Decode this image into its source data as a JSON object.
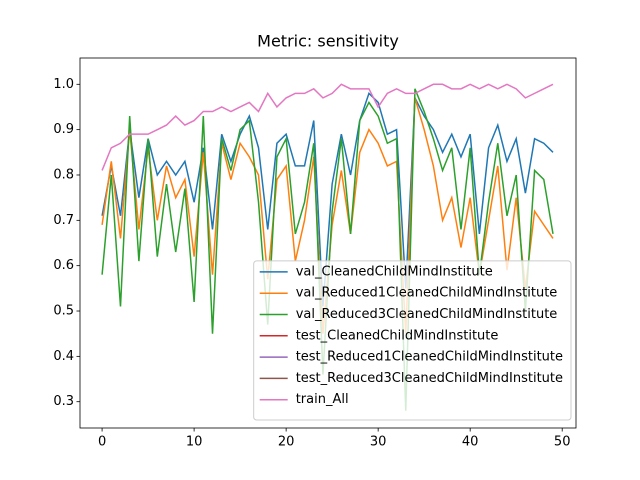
{
  "chart_data": {
    "type": "line",
    "title": "Metric: sensitivity",
    "x": [
      0,
      1,
      2,
      3,
      4,
      5,
      6,
      7,
      8,
      9,
      10,
      11,
      12,
      13,
      14,
      15,
      16,
      17,
      18,
      19,
      20,
      21,
      22,
      23,
      24,
      25,
      26,
      27,
      28,
      29,
      30,
      31,
      32,
      33,
      34,
      35,
      36,
      37,
      38,
      39,
      40,
      41,
      42,
      43,
      44,
      45,
      46,
      47,
      48,
      49
    ],
    "xlim": [
      -2.4,
      51.5
    ],
    "xticks": [
      0,
      10,
      20,
      30,
      40,
      50
    ],
    "ylim": [
      0.242,
      1.058
    ],
    "yticks": [
      0.3,
      0.4,
      0.5,
      0.6,
      0.7,
      0.8,
      0.9,
      {
        "value": 1,
        "label": "1.0"
      }
    ],
    "legend": "lower right",
    "series": [
      {
        "name": "val_CleanedChildMindInstitute",
        "color": "#1f77b4",
        "values": [
          0.71,
          0.82,
          0.71,
          0.9,
          0.75,
          0.88,
          0.8,
          0.83,
          0.8,
          0.83,
          0.74,
          0.86,
          0.68,
          0.89,
          0.83,
          0.89,
          0.93,
          0.86,
          0.68,
          0.87,
          0.89,
          0.82,
          0.82,
          0.92,
          0.51,
          0.78,
          0.89,
          0.8,
          0.92,
          0.98,
          0.96,
          0.89,
          0.9,
          0.55,
          0.97,
          0.93,
          0.9,
          0.85,
          0.89,
          0.84,
          0.89,
          0.67,
          0.86,
          0.91,
          0.83,
          0.88,
          0.76,
          0.88,
          0.87,
          0.85
        ]
      },
      {
        "name": "val_Reduced1CleanedChildMindInstitute",
        "color": "#ff7f0e",
        "values": [
          0.69,
          0.83,
          0.66,
          0.9,
          0.68,
          0.86,
          0.7,
          0.82,
          0.75,
          0.79,
          0.62,
          0.85,
          0.58,
          0.87,
          0.79,
          0.87,
          0.84,
          0.8,
          0.57,
          0.79,
          0.82,
          0.61,
          0.7,
          0.84,
          0.45,
          0.69,
          0.81,
          0.67,
          0.85,
          0.9,
          0.87,
          0.82,
          0.83,
          0.45,
          0.97,
          0.9,
          0.82,
          0.7,
          0.75,
          0.64,
          0.75,
          0.58,
          0.7,
          0.82,
          0.59,
          0.75,
          0.55,
          0.72,
          0.69,
          0.66
        ]
      },
      {
        "name": "val_Reduced3CleanedChildMindInstitute",
        "color": "#2ca02c",
        "values": [
          0.58,
          0.8,
          0.51,
          0.93,
          0.61,
          0.88,
          0.62,
          0.78,
          0.63,
          0.77,
          0.52,
          0.93,
          0.45,
          0.88,
          0.81,
          0.9,
          0.92,
          0.74,
          0.47,
          0.84,
          0.88,
          0.67,
          0.74,
          0.87,
          0.36,
          0.72,
          0.88,
          0.67,
          0.92,
          0.96,
          0.93,
          0.87,
          0.88,
          0.28,
          0.99,
          0.94,
          0.88,
          0.81,
          0.86,
          0.68,
          0.86,
          0.58,
          0.74,
          0.87,
          0.71,
          0.8,
          0.5,
          0.81,
          0.79,
          0.67
        ]
      },
      {
        "name": "test_CleanedChildMindInstitute",
        "color": "#d62728",
        "values": [
          null,
          null,
          null,
          null,
          null,
          null,
          null,
          null,
          null,
          null,
          null,
          null,
          null,
          null,
          null,
          null,
          null,
          null,
          null,
          null,
          null,
          null,
          null,
          null,
          null,
          null,
          null,
          null,
          null,
          null,
          null,
          null,
          null,
          null,
          null,
          null,
          null,
          null,
          null,
          null,
          null,
          null,
          null,
          null,
          null,
          null,
          null,
          null,
          null,
          null
        ]
      },
      {
        "name": "test_Reduced1CleanedChildMindInstitute",
        "color": "#9467bd",
        "values": [
          null,
          null,
          null,
          null,
          null,
          null,
          null,
          null,
          null,
          null,
          null,
          null,
          null,
          null,
          null,
          null,
          null,
          null,
          null,
          null,
          null,
          null,
          null,
          null,
          null,
          null,
          null,
          null,
          null,
          null,
          null,
          null,
          null,
          null,
          null,
          null,
          null,
          null,
          null,
          null,
          null,
          null,
          null,
          null,
          null,
          null,
          null,
          null,
          null,
          null
        ]
      },
      {
        "name": "test_Reduced3CleanedChildMindInstitute",
        "color": "#8c564b",
        "values": [
          null,
          null,
          null,
          null,
          null,
          null,
          null,
          null,
          null,
          null,
          null,
          null,
          null,
          null,
          null,
          null,
          null,
          null,
          null,
          null,
          null,
          null,
          null,
          null,
          null,
          null,
          null,
          null,
          null,
          null,
          null,
          null,
          null,
          null,
          null,
          null,
          null,
          null,
          null,
          null,
          null,
          null,
          null,
          null,
          null,
          null,
          null,
          null,
          null,
          null
        ]
      },
      {
        "name": "train_All",
        "color": "#e377c2",
        "values": [
          0.81,
          0.86,
          0.87,
          0.89,
          0.89,
          0.89,
          0.9,
          0.91,
          0.93,
          0.91,
          0.92,
          0.94,
          0.94,
          0.95,
          0.94,
          0.95,
          0.96,
          0.94,
          0.98,
          0.95,
          0.97,
          0.98,
          0.98,
          0.99,
          0.97,
          0.98,
          1.0,
          0.99,
          0.99,
          0.99,
          0.95,
          0.98,
          0.99,
          0.98,
          0.98,
          0.99,
          1.0,
          1.0,
          0.99,
          0.99,
          1.0,
          0.99,
          1.0,
          0.99,
          1.0,
          0.99,
          0.97,
          0.98,
          0.99,
          1.0
        ]
      }
    ]
  }
}
